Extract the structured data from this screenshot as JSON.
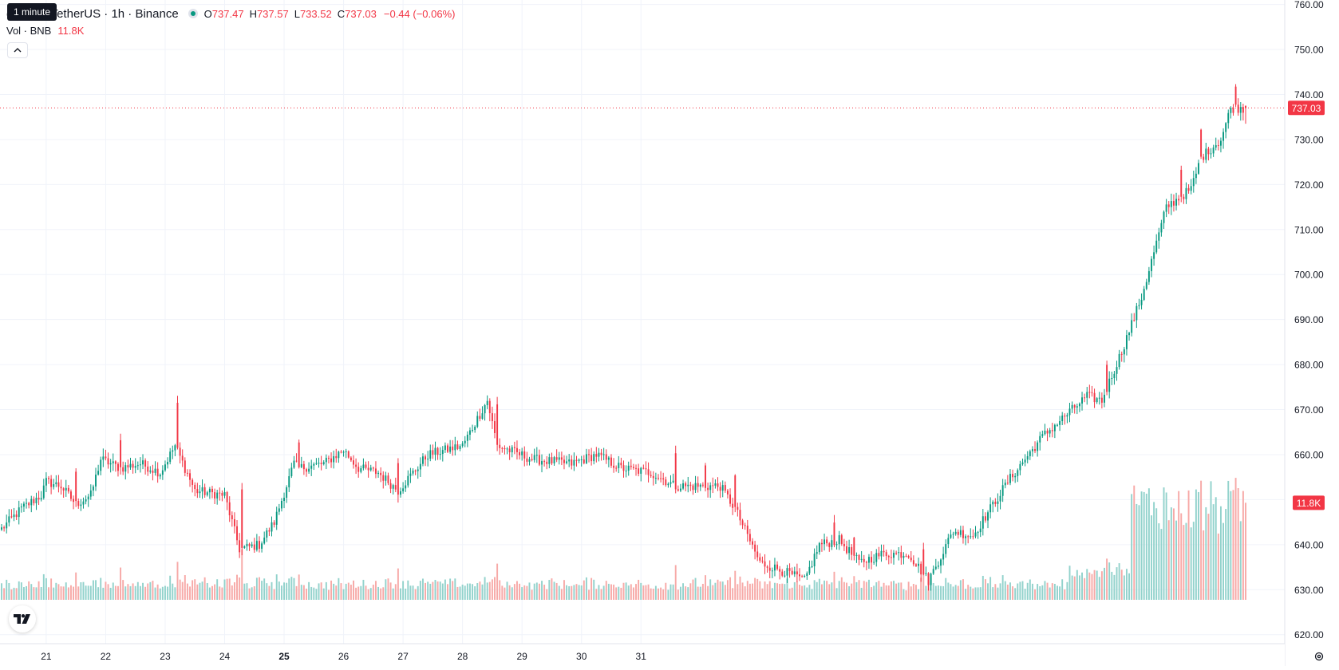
{
  "header": {
    "symbol_title": "e Coin / TetherUS · 1h · Binance",
    "tooltip": "1 minute",
    "ohlc": {
      "o_label": "O",
      "o_value": "737.47",
      "h_label": "H",
      "h_value": "737.57",
      "l_label": "L",
      "l_value": "733.52",
      "c_label": "C",
      "c_value": "737.03"
    },
    "change": "−0.44 (−0.06%)"
  },
  "volume_legend": {
    "label": "Vol · BNB",
    "value": "11.8K"
  },
  "price_axis": {
    "ticks": [
      "620.00",
      "630.00",
      "640.00",
      "650.00",
      "660.00",
      "670.00",
      "680.00",
      "690.00",
      "700.00",
      "710.00",
      "720.00",
      "730.00",
      "740.00",
      "750.00",
      "760.00"
    ],
    "last_price_label": "737.03",
    "volume_label": "11.8K"
  },
  "icons": {
    "logo": "tradingview-logo-icon",
    "collapse": "chevron-up-icon",
    "settings": "gear-icon",
    "status": "market-open-dot-icon"
  },
  "colors": {
    "up": "#089981",
    "down": "#f23645",
    "vol_up": "#92d2cc",
    "vol_down": "#f7a9a7",
    "grid": "#f0f3fa",
    "text": "#131722"
  },
  "chart_data": {
    "type": "candlestick",
    "interval": "1h",
    "ylim": [
      618,
      761
    ],
    "x_ticks": [
      {
        "label": "21",
        "bold": false
      },
      {
        "label": "22",
        "bold": false
      },
      {
        "label": "23",
        "bold": false
      },
      {
        "label": "24",
        "bold": false
      },
      {
        "label": "25",
        "bold": true
      },
      {
        "label": "26",
        "bold": false
      },
      {
        "label": "27",
        "bold": false
      },
      {
        "label": "28",
        "bold": false
      },
      {
        "label": "29",
        "bold": false
      },
      {
        "label": "30",
        "bold": false
      },
      {
        "label": "31",
        "bold": false
      }
    ],
    "close_anchors": [
      [
        0,
        643.5
      ],
      [
        8,
        648
      ],
      [
        16,
        651
      ],
      [
        18,
        654
      ],
      [
        24,
        653
      ],
      [
        30,
        649
      ],
      [
        36,
        651
      ],
      [
        40,
        659
      ],
      [
        48,
        657
      ],
      [
        56,
        658
      ],
      [
        64,
        656
      ],
      [
        70,
        662
      ],
      [
        78,
        652
      ],
      [
        90,
        651
      ],
      [
        96,
        639
      ],
      [
        104,
        640
      ],
      [
        110,
        645
      ],
      [
        118,
        658
      ],
      [
        120,
        657
      ],
      [
        130,
        658
      ],
      [
        138,
        661
      ],
      [
        144,
        657
      ],
      [
        152,
        656
      ],
      [
        160,
        652
      ],
      [
        172,
        660
      ],
      [
        186,
        662
      ],
      [
        196,
        672
      ],
      [
        200,
        662
      ],
      [
        214,
        659
      ],
      [
        230,
        658
      ],
      [
        240,
        660
      ],
      [
        250,
        657
      ],
      [
        262,
        656
      ],
      [
        272,
        653
      ],
      [
        284,
        653
      ],
      [
        290,
        653
      ],
      [
        296,
        648
      ],
      [
        306,
        636
      ],
      [
        316,
        634
      ],
      [
        324,
        632
      ],
      [
        330,
        640
      ],
      [
        338,
        641
      ],
      [
        346,
        636
      ],
      [
        356,
        638
      ],
      [
        366,
        638
      ],
      [
        374,
        632
      ],
      [
        384,
        643
      ],
      [
        392,
        642
      ],
      [
        406,
        654
      ],
      [
        420,
        664
      ],
      [
        432,
        670
      ],
      [
        438,
        673
      ],
      [
        444,
        672
      ],
      [
        452,
        683
      ],
      [
        460,
        695
      ],
      [
        470,
        715
      ],
      [
        480,
        719
      ],
      [
        484,
        726
      ],
      [
        492,
        730
      ],
      [
        496,
        737
      ],
      [
        502,
        737
      ]
    ],
    "down_moves": [
      [
        30,
        6.5
      ],
      [
        48,
        6
      ],
      [
        71,
        10
      ],
      [
        97,
        13
      ],
      [
        120,
        5.5
      ],
      [
        160,
        7
      ],
      [
        200,
        9
      ],
      [
        272,
        8
      ],
      [
        284,
        5
      ],
      [
        296,
        7
      ],
      [
        336,
        5
      ],
      [
        344,
        4
      ],
      [
        372,
        5.5
      ],
      [
        446,
        6
      ],
      [
        476,
        6
      ],
      [
        484,
        6
      ],
      [
        498,
        4
      ]
    ],
    "last_price": 737.03,
    "volume_note": "relative volume per candle, current 11.8K"
  }
}
